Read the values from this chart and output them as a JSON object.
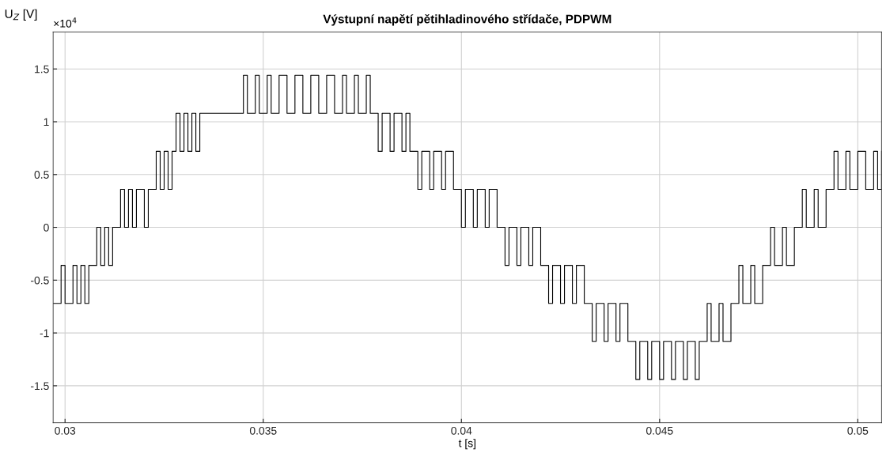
{
  "chart_data": {
    "type": "step",
    "title": "Výstupní napětí pětihladinového střídače, PDPWM",
    "xlabel": "t [s]",
    "ylabel": "U$_{Z}$ [V]",
    "annotations": [
      "×10$^{4}$"
    ],
    "xlim": [
      0.0297,
      0.0506
    ],
    "xticks": [
      0.03,
      0.035,
      0.04,
      0.045,
      0.05
    ],
    "ylim": [
      -1.85,
      1.85
    ],
    "yticks": [
      -1.5,
      -1,
      -0.5,
      0,
      0.5,
      1,
      1.5
    ],
    "grid": true,
    "marker": "none",
    "line_style": "solid",
    "series": [
      {
        "color": "#000000",
        "x": [
          0.0297,
          0.0299,
          0.03,
          0.0302,
          0.0303,
          0.0304,
          0.0305,
          0.0306,
          0.0308,
          0.0309,
          0.031,
          0.0311,
          0.0312,
          0.0314,
          0.0315,
          0.0316,
          0.0317,
          0.0318,
          0.032,
          0.0321,
          0.0323,
          0.0324,
          0.0325,
          0.0326,
          0.0327,
          0.0328,
          0.0329,
          0.033,
          0.0331,
          0.0332,
          0.0333,
          0.0334,
          0.0345,
          0.0346,
          0.0348,
          0.0349,
          0.0351,
          0.0352,
          0.0354,
          0.0356,
          0.0358,
          0.036,
          0.0362,
          0.0364,
          0.0366,
          0.0368,
          0.037,
          0.0371,
          0.0373,
          0.0374,
          0.0376,
          0.0377,
          0.0379,
          0.038,
          0.0382,
          0.0383,
          0.0385,
          0.0386,
          0.0387,
          0.0389,
          0.039,
          0.0392,
          0.0393,
          0.0395,
          0.0396,
          0.0398,
          0.04,
          0.0401,
          0.0403,
          0.0404,
          0.0406,
          0.0407,
          0.0409,
          0.0411,
          0.0412,
          0.0414,
          0.0415,
          0.0417,
          0.0418,
          0.042,
          0.0422,
          0.0423,
          0.0425,
          0.0426,
          0.0428,
          0.0429,
          0.0431,
          0.0433,
          0.0434,
          0.0436,
          0.0437,
          0.0439,
          0.044,
          0.0442,
          0.0444,
          0.0445,
          0.0447,
          0.0448,
          0.045,
          0.0451,
          0.0453,
          0.0454,
          0.0456,
          0.0457,
          0.0459,
          0.046,
          0.0462,
          0.0463,
          0.0465,
          0.0466,
          0.0468,
          0.047,
          0.0471,
          0.0473,
          0.0474,
          0.0476,
          0.0478,
          0.0479,
          0.0481,
          0.0482,
          0.0484,
          0.0486,
          0.0487,
          0.0489,
          0.049,
          0.0492,
          0.0494,
          0.0495,
          0.0497,
          0.0498,
          0.05,
          0.0502,
          0.0504,
          0.0505,
          0.0506
        ],
        "values": [
          -0.72,
          -0.36,
          -0.72,
          -0.36,
          -0.72,
          -0.36,
          -0.72,
          -0.36,
          0,
          -0.36,
          0,
          -0.36,
          0,
          0.36,
          0,
          0.36,
          0,
          0.36,
          0,
          0.36,
          0.72,
          0.36,
          0.72,
          0.36,
          0.72,
          1.08,
          0.72,
          1.08,
          0.72,
          1.08,
          0.72,
          1.08,
          1.44,
          1.08,
          1.44,
          1.08,
          1.44,
          1.08,
          1.44,
          1.08,
          1.44,
          1.08,
          1.44,
          1.08,
          1.44,
          1.08,
          1.44,
          1.08,
          1.44,
          1.08,
          1.44,
          1.08,
          0.72,
          1.08,
          0.72,
          1.08,
          0.72,
          1.08,
          0.72,
          0.36,
          0.72,
          0.36,
          0.72,
          0.36,
          0.72,
          0.36,
          0,
          0.36,
          0,
          0.36,
          0,
          0.36,
          0,
          -0.36,
          0,
          -0.36,
          0,
          -0.36,
          0,
          -0.36,
          -0.72,
          -0.36,
          -0.72,
          -0.36,
          -0.72,
          -0.36,
          -0.72,
          -1.08,
          -0.72,
          -1.08,
          -0.72,
          -1.08,
          -0.72,
          -1.08,
          -1.44,
          -1.08,
          -1.44,
          -1.08,
          -1.44,
          -1.08,
          -1.44,
          -1.08,
          -1.44,
          -1.08,
          -1.44,
          -1.08,
          -0.72,
          -1.08,
          -0.72,
          -1.08,
          -0.72,
          -0.36,
          -0.72,
          -0.36,
          -0.72,
          -0.36,
          0,
          -0.36,
          0,
          -0.36,
          0,
          0.36,
          0,
          0.36,
          0,
          0.36,
          0.72,
          0.36,
          0.72,
          0.36,
          0.72,
          0.36,
          0.72,
          0.36,
          0.72
        ]
      }
    ]
  }
}
